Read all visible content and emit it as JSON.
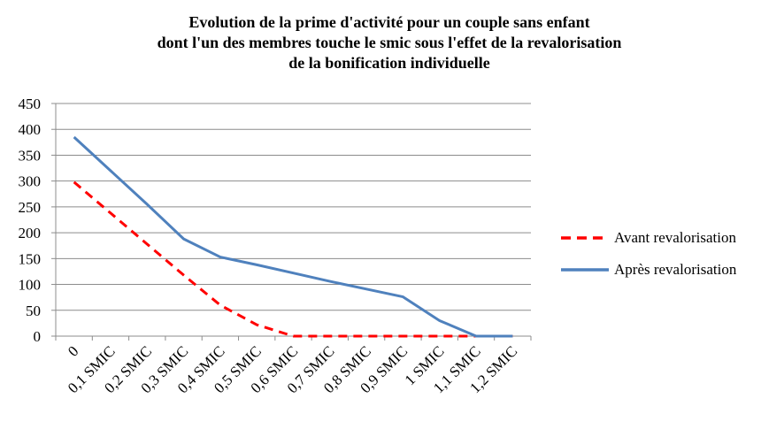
{
  "chart_data": {
    "type": "line",
    "title_lines": [
      "Evolution de la prime d'activité pour un couple sans enfant",
      "dont l'un des membres touche le smic sous l'effet de la revalorisation",
      "de la bonification individuelle"
    ],
    "categories": [
      "0",
      "0,1 SMIC",
      "0,2 SMIC",
      "0,3 SMIC",
      "0,4 SMIC",
      "0,5 SMIC",
      "0,6 SMIC",
      "0,7 SMIC",
      "0,8 SMIC",
      "0,9 SMIC",
      "1 SMIC",
      "1,1 SMIC",
      "1,2 SMIC"
    ],
    "ylim": [
      0,
      450
    ],
    "yticks": [
      0,
      50,
      100,
      150,
      200,
      250,
      300,
      350,
      400,
      450
    ],
    "grid": true,
    "legend_position": "right",
    "series": [
      {
        "name": "Avant revalorisation",
        "color": "#FF0000",
        "dash": "dashed",
        "values": [
          298,
          238,
          178,
          118,
          60,
          22,
          0,
          0,
          0,
          0,
          0,
          0,
          0
        ]
      },
      {
        "name": "Après revalorisation",
        "color": "#4F81BD",
        "dash": "solid",
        "values": [
          385,
          320,
          255,
          188,
          153,
          138,
          122,
          106,
          91,
          76,
          30,
          0,
          0
        ]
      }
    ]
  }
}
